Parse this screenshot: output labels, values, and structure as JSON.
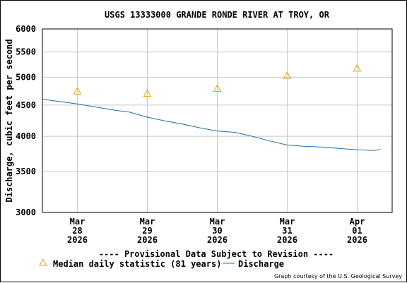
{
  "chart_data": {
    "type": "line",
    "title": "USGS 13333000 GRANDE RONDE RIVER AT TROY, OR",
    "ylabel": "Discharge, cubic feet per second",
    "xlabel": "",
    "y_scale": "log",
    "ylim": [
      3000,
      6000
    ],
    "y_ticks": [
      3000,
      3500,
      4000,
      4500,
      5000,
      5500,
      6000
    ],
    "y_tick_labels": [
      "3000",
      "3500",
      "4000",
      "4500",
      "5000",
      "5500",
      "6000"
    ],
    "xlim": [
      "2026-03-27 12:00",
      "2026-04-01 12:00"
    ],
    "x_ticks": [
      {
        "pos": "2026-03-28 00:00",
        "label": [
          "Mar",
          "28",
          "2026"
        ]
      },
      {
        "pos": "2026-03-29 00:00",
        "label": [
          "Mar",
          "29",
          "2026"
        ]
      },
      {
        "pos": "2026-03-30 00:00",
        "label": [
          "Mar",
          "30",
          "2026"
        ]
      },
      {
        "pos": "2026-03-31 00:00",
        "label": [
          "Mar",
          "31",
          "2026"
        ]
      },
      {
        "pos": "2026-04-01 00:00",
        "label": [
          "Apr",
          "01",
          "2026"
        ]
      }
    ],
    "grid": true,
    "series": [
      {
        "name": "Discharge",
        "color": "#1f6fa8",
        "style": "line",
        "x": [
          "2026-03-27 12:00",
          "2026-03-27 18:00",
          "2026-03-28 00:00",
          "2026-03-28 06:00",
          "2026-03-28 12:00",
          "2026-03-28 18:00",
          "2026-03-29 00:00",
          "2026-03-29 06:00",
          "2026-03-29 12:00",
          "2026-03-29 18:00",
          "2026-03-30 00:00",
          "2026-03-30 06:00",
          "2026-03-30 12:00",
          "2026-03-30 18:00",
          "2026-03-31 00:00",
          "2026-03-31 06:00",
          "2026-03-31 12:00",
          "2026-03-31 18:00",
          "2026-04-01 00:00",
          "2026-04-01 06:00",
          "2026-04-01 08:00"
        ],
        "y": [
          4600,
          4560,
          4520,
          4470,
          4420,
          4380,
          4300,
          4240,
          4190,
          4130,
          4080,
          4060,
          4000,
          3930,
          3870,
          3850,
          3840,
          3820,
          3800,
          3790,
          3810
        ]
      },
      {
        "name": "Median daily statistic (81 years)",
        "color": "#e8a000",
        "style": "triangle",
        "x": [
          "2026-03-28 00:00",
          "2026-03-29 00:00",
          "2026-03-30 00:00",
          "2026-03-31 00:00",
          "2026-04-01 00:00"
        ],
        "y": [
          4740,
          4700,
          4790,
          5030,
          5170
        ]
      }
    ],
    "legend_placement": "bottom-left"
  },
  "colors": {
    "grid": "#c8c8c8",
    "revision_text": "#e00000",
    "median": "#e8a000",
    "discharge": "#1f6fa8"
  },
  "provisional_note": "---- Provisional Data Subject to Revision ----",
  "legend": {
    "median": "Median daily statistic (81 years)",
    "discharge": "Discharge"
  },
  "credit": "Graph courtesy of the U.S. Geological Survey"
}
